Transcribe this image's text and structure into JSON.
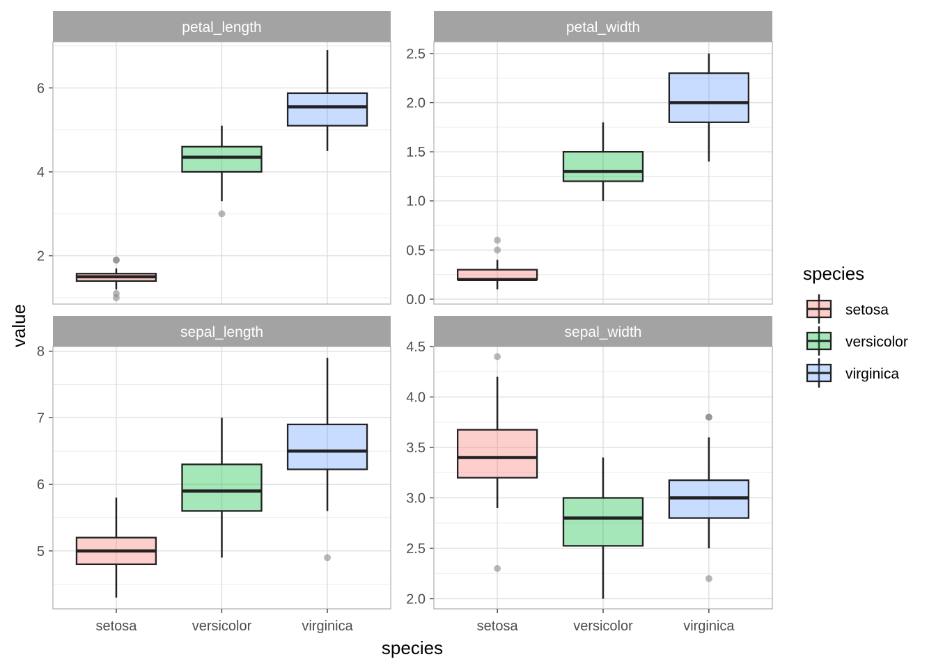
{
  "chart_data": {
    "type": "boxplot",
    "xlabel": "species",
    "ylabel": "value",
    "categories": [
      "setosa",
      "versicolor",
      "virginica"
    ],
    "legend": {
      "title": "species",
      "placement": "right",
      "items": [
        "setosa",
        "versicolor",
        "virginica"
      ]
    },
    "colors": {
      "setosa": "#F8766D",
      "versicolor": "#00BA38",
      "virginica": "#619CFF",
      "strip": "#A3A3A3",
      "grid": "#DCDCDC",
      "outlier": "#7F7F7F"
    },
    "grid": true,
    "panels": [
      {
        "name": "petal_length",
        "ylim": [
          0.85,
          7.1
        ],
        "yticks": [
          2,
          4,
          6
        ],
        "ytick_labels": [
          "2",
          "4",
          "6"
        ],
        "boxes": [
          {
            "category": "setosa",
            "q1": 1.4,
            "median": 1.5,
            "q3": 1.575,
            "whisker_low": 1.2,
            "whisker_high": 1.7,
            "outliers": [
              1.0,
              1.1,
              1.9,
              1.9
            ]
          },
          {
            "category": "versicolor",
            "q1": 4.0,
            "median": 4.35,
            "q3": 4.6,
            "whisker_low": 3.3,
            "whisker_high": 5.1,
            "outliers": [
              3.0
            ]
          },
          {
            "category": "virginica",
            "q1": 5.1,
            "median": 5.55,
            "q3": 5.875,
            "whisker_low": 4.5,
            "whisker_high": 6.9,
            "outliers": []
          }
        ]
      },
      {
        "name": "petal_width",
        "ylim": [
          -0.05,
          2.62
        ],
        "yticks": [
          0.0,
          0.5,
          1.0,
          1.5,
          2.0,
          2.5
        ],
        "ytick_labels": [
          "0.0",
          "0.5",
          "1.0",
          "1.5",
          "2.0",
          "2.5"
        ],
        "boxes": [
          {
            "category": "setosa",
            "q1": 0.2,
            "median": 0.2,
            "q3": 0.3,
            "whisker_low": 0.1,
            "whisker_high": 0.4,
            "outliers": [
              0.5,
              0.6
            ]
          },
          {
            "category": "versicolor",
            "q1": 1.2,
            "median": 1.3,
            "q3": 1.5,
            "whisker_low": 1.0,
            "whisker_high": 1.8,
            "outliers": []
          },
          {
            "category": "virginica",
            "q1": 1.8,
            "median": 2.0,
            "q3": 2.3,
            "whisker_low": 1.4,
            "whisker_high": 2.5,
            "outliers": []
          }
        ]
      },
      {
        "name": "sepal_length",
        "ylim": [
          4.13,
          8.07
        ],
        "yticks": [
          5,
          6,
          7,
          8
        ],
        "ytick_labels": [
          "5",
          "6",
          "7",
          "8"
        ],
        "boxes": [
          {
            "category": "setosa",
            "q1": 4.8,
            "median": 5.0,
            "q3": 5.2,
            "whisker_low": 4.3,
            "whisker_high": 5.8,
            "outliers": []
          },
          {
            "category": "versicolor",
            "q1": 5.6,
            "median": 5.9,
            "q3": 6.3,
            "whisker_low": 4.9,
            "whisker_high": 7.0,
            "outliers": []
          },
          {
            "category": "virginica",
            "q1": 6.225,
            "median": 6.5,
            "q3": 6.9,
            "whisker_low": 5.6,
            "whisker_high": 7.9,
            "outliers": [
              4.9
            ]
          }
        ]
      },
      {
        "name": "sepal_width",
        "ylim": [
          1.9,
          4.5
        ],
        "yticks": [
          2.0,
          2.5,
          3.0,
          3.5,
          4.0,
          4.5
        ],
        "ytick_labels": [
          "2.0",
          "2.5",
          "3.0",
          "3.5",
          "4.0",
          "4.5"
        ],
        "boxes": [
          {
            "category": "setosa",
            "q1": 3.2,
            "median": 3.4,
            "q3": 3.675,
            "whisker_low": 2.9,
            "whisker_high": 4.2,
            "outliers": [
              2.3,
              4.4
            ]
          },
          {
            "category": "versicolor",
            "q1": 2.525,
            "median": 2.8,
            "q3": 3.0,
            "whisker_low": 2.0,
            "whisker_high": 3.4,
            "outliers": []
          },
          {
            "category": "virginica",
            "q1": 2.8,
            "median": 3.0,
            "q3": 3.175,
            "whisker_low": 2.5,
            "whisker_high": 3.6,
            "outliers": [
              2.2,
              3.8,
              3.8
            ]
          }
        ]
      }
    ]
  }
}
